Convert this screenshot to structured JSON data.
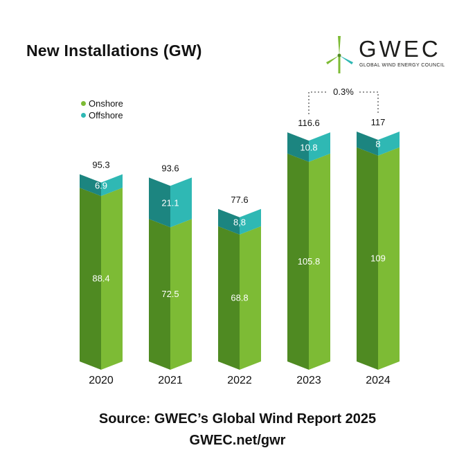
{
  "header": {
    "title": "New Installations (GW)"
  },
  "logo": {
    "name": "GWEC",
    "tagline": "GLOBAL WIND ENERGY COUNCIL"
  },
  "legend": [
    {
      "label": "Onshore",
      "color": "#7dbb35"
    },
    {
      "label": "Offshore",
      "color": "#2fb8b4"
    }
  ],
  "chart_data": {
    "type": "bar",
    "stacked": true,
    "title": "New Installations (GW)",
    "categories": [
      "2020",
      "2021",
      "2022",
      "2023",
      "2024"
    ],
    "series": [
      {
        "name": "Onshore",
        "values": [
          88.4,
          72.5,
          68.8,
          105.8,
          109
        ],
        "value_labels": [
          "88.4",
          "72.5",
          "68.8",
          "105.8",
          "109"
        ],
        "color_light": "#7dbb35",
        "color_dark": "#4f8a22"
      },
      {
        "name": "Offshore",
        "values": [
          6.9,
          21.1,
          8.8,
          10.8,
          8
        ],
        "value_labels": [
          "6.9",
          "21.1",
          "8,8",
          "10.8",
          "8"
        ],
        "color_light": "#2fb8b4",
        "color_dark": "#1c8580"
      }
    ],
    "totals": [
      "95.3",
      "93.6",
      "77.6",
      "116.6",
      "117"
    ],
    "annotation": {
      "text": "0.3%",
      "from": "2023",
      "to": "2024"
    },
    "ylim": [
      0,
      117
    ]
  },
  "footer": {
    "source": "Source: GWEC’s Global Wind Report 2025",
    "url": "GWEC.net/gwr"
  }
}
